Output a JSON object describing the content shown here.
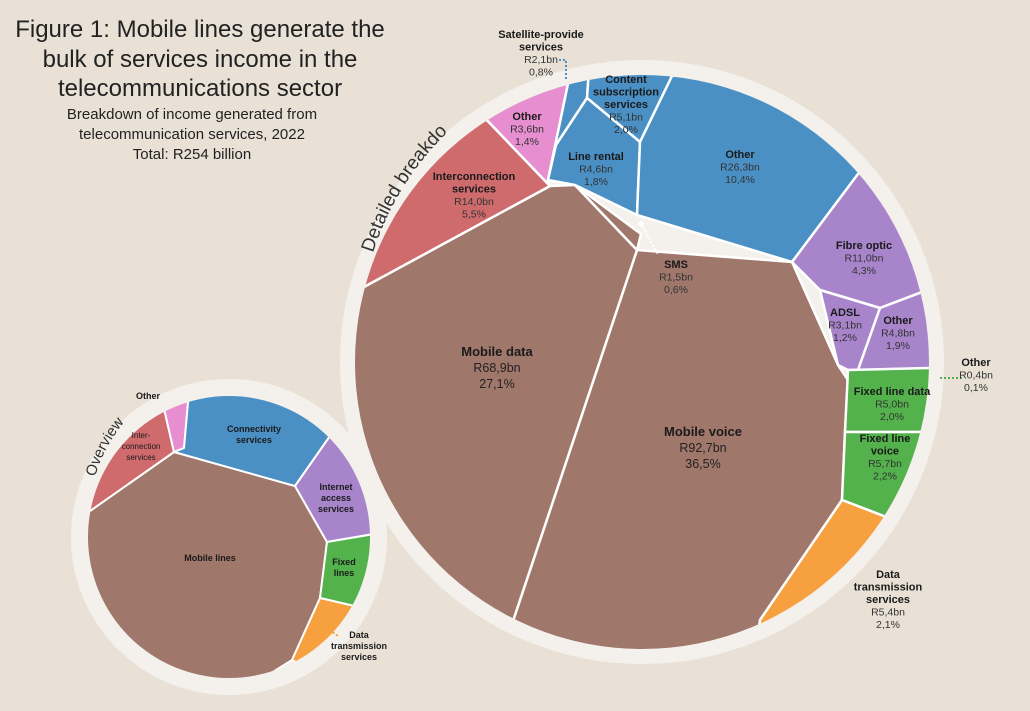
{
  "header": {
    "title_lines": [
      "Figure 1: Mobile lines generate the",
      "bulk of services income in the",
      "telecommunications sector"
    ],
    "subtitle_lines": [
      "Breakdown of income generated from",
      "telecommunication services, 2022",
      "Total: R254 billion"
    ]
  },
  "ring_labels": {
    "detailed": "Detailed breakdown",
    "overview": "Overview"
  },
  "colors": {
    "mobile": "#a0776b",
    "interconnection": "#cf6b6d",
    "pink": "#e68ed0",
    "connectivity": "#4a90c4",
    "internet": "#a885cb",
    "fixed": "#53b24c",
    "data_transmission": "#f6a03f",
    "ring": "#f4f1ec",
    "background": "#e9e1d6"
  },
  "chart_data": [
    {
      "type": "pie",
      "name": "Detailed breakdown",
      "unit": "R billion",
      "total": "R254 billion",
      "slices": [
        {
          "label": "Mobile voice",
          "value_text": "R92,7bn",
          "percent_text": "36,5%",
          "value": 92.7,
          "percent": 36.5,
          "group": "Mobile lines"
        },
        {
          "label": "Mobile data",
          "value_text": "R68,9bn",
          "percent_text": "27,1%",
          "value": 68.9,
          "percent": 27.1,
          "group": "Mobile lines"
        },
        {
          "label": "SMS",
          "value_text": "R1,5bn",
          "percent_text": "0,6%",
          "value": 1.5,
          "percent": 0.6,
          "group": "Mobile lines"
        },
        {
          "label": "Interconnection services",
          "value_text": "R14,0bn",
          "percent_text": "5,5%",
          "value": 14.0,
          "percent": 5.5,
          "group": "Interconnection services"
        },
        {
          "label": "Other",
          "value_text": "R3,6bn",
          "percent_text": "1,4%",
          "value": 3.6,
          "percent": 1.4,
          "group": "Other"
        },
        {
          "label": "Satellite-provide services",
          "value_text": "R2,1bn",
          "percent_text": "0,8%",
          "value": 2.1,
          "percent": 0.8,
          "group": "Connectivity services"
        },
        {
          "label": "Content subscription services",
          "value_text": "R5,1bn",
          "percent_text": "2,0%",
          "value": 5.1,
          "percent": 2.0,
          "group": "Connectivity services"
        },
        {
          "label": "Line rental",
          "value_text": "R4,6bn",
          "percent_text": "1,8%",
          "value": 4.6,
          "percent": 1.8,
          "group": "Connectivity services"
        },
        {
          "label": "Other",
          "value_text": "R26,3bn",
          "percent_text": "10,4%",
          "value": 26.3,
          "percent": 10.4,
          "group": "Connectivity services"
        },
        {
          "label": "Fibre optic",
          "value_text": "R11,0bn",
          "percent_text": "4,3%",
          "value": 11.0,
          "percent": 4.3,
          "group": "Internet access services"
        },
        {
          "label": "ADSL",
          "value_text": "R3,1bn",
          "percent_text": "1,2%",
          "value": 3.1,
          "percent": 1.2,
          "group": "Internet access services"
        },
        {
          "label": "Other",
          "value_text": "R4,8bn",
          "percent_text": "1,9%",
          "value": 4.8,
          "percent": 1.9,
          "group": "Internet access services"
        },
        {
          "label": "Other",
          "value_text": "R0,4bn",
          "percent_text": "0,1%",
          "value": 0.4,
          "percent": 0.1,
          "group": "Fixed lines"
        },
        {
          "label": "Fixed line data",
          "value_text": "R5,0bn",
          "percent_text": "2,0%",
          "value": 5.0,
          "percent": 2.0,
          "group": "Fixed lines"
        },
        {
          "label": "Fixed line voice",
          "value_text": "R5,7bn",
          "percent_text": "2,2%",
          "value": 5.7,
          "percent": 2.2,
          "group": "Fixed lines"
        },
        {
          "label": "Data transmission services",
          "value_text": "R5,4bn",
          "percent_text": "2,1%",
          "value": 5.4,
          "percent": 2.1,
          "group": "Data transmission services"
        }
      ]
    },
    {
      "type": "pie",
      "name": "Overview",
      "slices": [
        {
          "label": "Mobile lines"
        },
        {
          "label": "Inter-connection services"
        },
        {
          "label": "Other"
        },
        {
          "label": "Connectivity services"
        },
        {
          "label": "Internet access services"
        },
        {
          "label": "Fixed lines"
        },
        {
          "label": "Data transmission services"
        }
      ]
    }
  ]
}
